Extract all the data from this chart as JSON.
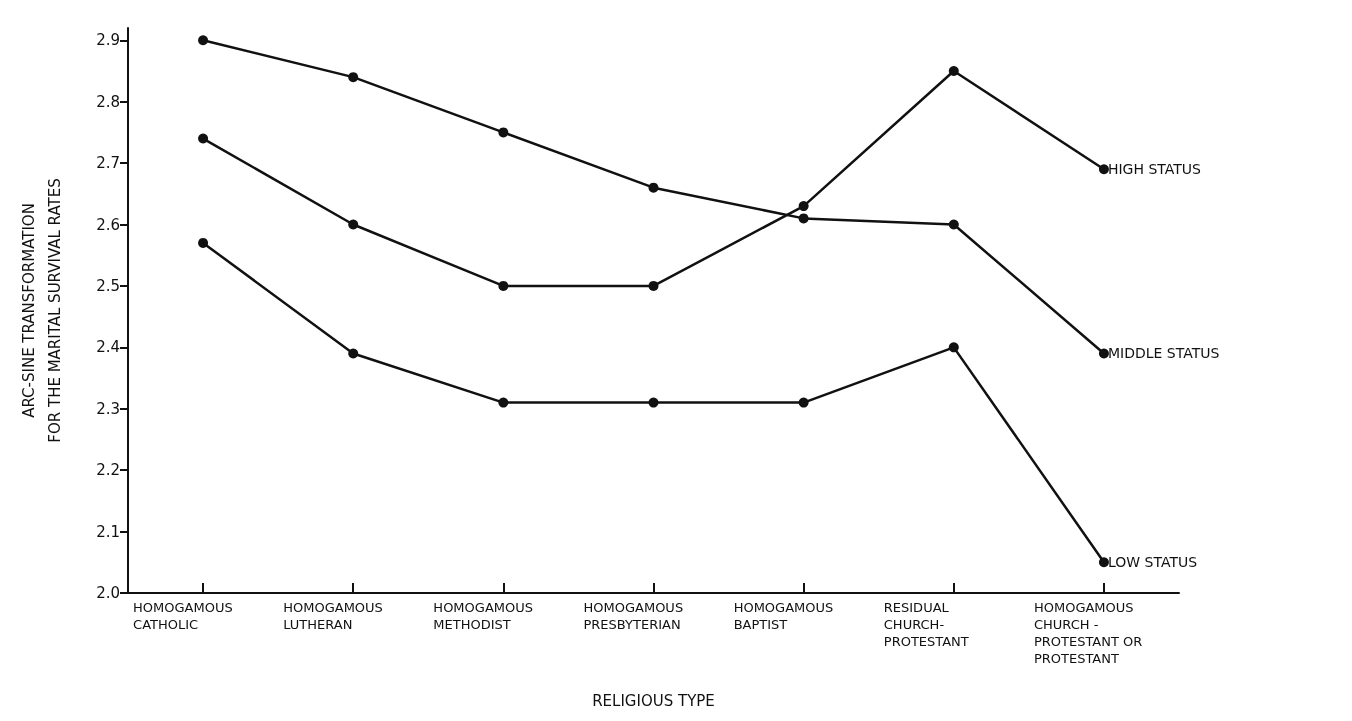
{
  "chart_data": {
    "type": "line",
    "xlabel": "RELIGIOUS TYPE",
    "ylabel": "ARC-SINE TRANSFORMATION\nFOR THE MARITAL SURVIVAL RATES",
    "categories": [
      "HOMOGAMOUS\nCATHOLIC",
      "HOMOGAMOUS\nLUTHERAN",
      "HOMOGAMOUS\nMETHODIST",
      "HOMOGAMOUS\nPRESBYTERIAN",
      "HOMOGAMOUS\nBAPTIST",
      "RESIDUAL\nCHURCH-\nPROTESTANT",
      "HOMOGAMOUS\nCHURCH -\nPROTESTANT OR\nPROTESTANT"
    ],
    "series": [
      {
        "name": "HIGH STATUS",
        "color": "#111111",
        "values": [
          2.74,
          2.6,
          2.5,
          2.5,
          2.63,
          2.85,
          2.69
        ]
      },
      {
        "name": "MIDDLE STATUS",
        "color": "#111111",
        "values": [
          2.9,
          2.84,
          2.75,
          2.66,
          2.61,
          2.6,
          2.39
        ]
      },
      {
        "name": "LOW STATUS",
        "color": "#111111",
        "values": [
          2.57,
          2.39,
          2.31,
          2.31,
          2.31,
          2.4,
          2.05
        ]
      }
    ],
    "ylim": [
      2.0,
      2.92
    ],
    "yticks": [
      {
        "value": 2.0,
        "label": "2.0"
      },
      2.1,
      2.2,
      2.3,
      2.4,
      2.5,
      2.6,
      2.7,
      2.8,
      2.9
    ],
    "grid": false,
    "legend": false,
    "marker": "circle",
    "line_style": "solid"
  }
}
